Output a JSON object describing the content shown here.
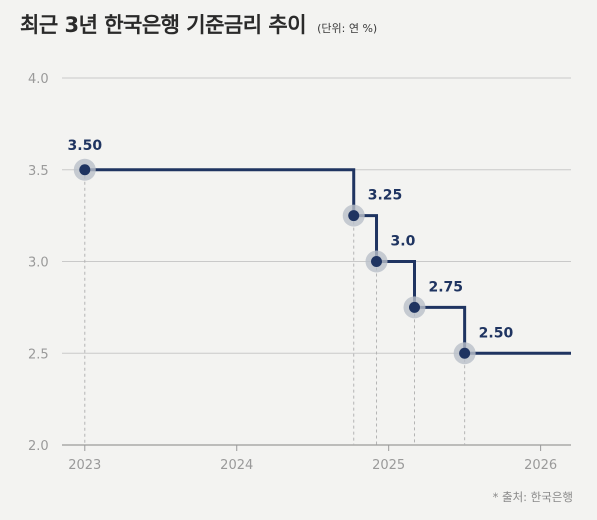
{
  "header": {
    "title": "최근 3년 한국은행 기준금리 추이",
    "unit": "(단위: 연 %)"
  },
  "source": "* 출처: 한국은행",
  "colors": {
    "background": "#f3f3f1",
    "line": "#1f3461",
    "halo": "#b9bfc9",
    "grid": "#c9c9c9",
    "axis_text": "#9a9a9a",
    "label_text": "#1f3461"
  },
  "chart_data": {
    "type": "line",
    "step": true,
    "title": "최근 3년 한국은행 기준금리 추이",
    "xlabel": "",
    "ylabel": "",
    "ylim": [
      2.0,
      4.0
    ],
    "xlim": [
      2022.85,
      2026.2
    ],
    "yticks": [
      "2.0",
      "2.5",
      "3.0",
      "3.5",
      "4.0"
    ],
    "xticks": [
      "2023",
      "2024",
      "2025",
      "2026"
    ],
    "grid": true,
    "series": [
      {
        "points": [
          {
            "x": 2023.0,
            "y": 3.5,
            "label": "3.50"
          },
          {
            "x": 2024.77,
            "y": 3.25,
            "label": "3.25"
          },
          {
            "x": 2024.92,
            "y": 3.0,
            "label": "3.0"
          },
          {
            "x": 2025.17,
            "y": 2.75,
            "label": "2.75"
          },
          {
            "x": 2025.5,
            "y": 2.5,
            "label": "2.50"
          }
        ],
        "end_x": 2026.2
      }
    ]
  }
}
